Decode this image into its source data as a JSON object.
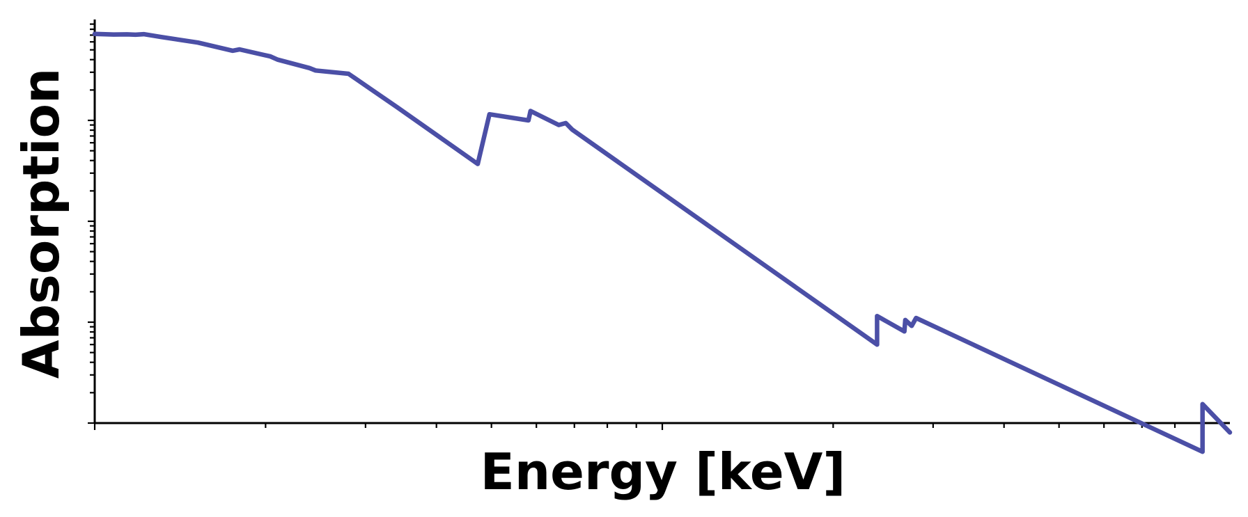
{
  "chart_data": {
    "type": "line",
    "xlabel": "Energy [keV]",
    "ylabel": "Absorption",
    "title": "",
    "x_scale": "log",
    "y_scale": "log",
    "xlim": [
      1,
      100
    ],
    "ylim": [
      0.1,
      1000
    ],
    "tick_labels_shown": false,
    "grid": false,
    "legend": "none",
    "color": "#4b4fa6",
    "series": [
      {
        "x": [
          1.0,
          1.08,
          1.14,
          1.18,
          1.22,
          1.31,
          1.52,
          1.75,
          1.8,
          2.04,
          2.1,
          2.39,
          2.45,
          2.8,
          3.41,
          4.73,
          4.76,
          4.96,
          5.81,
          5.86,
          6.57,
          6.76,
          6.94,
          23.9,
          23.9,
          26.7,
          26.8,
          27.5,
          28.0,
          89.5,
          89.5,
          103
        ],
        "y": [
          720,
          710,
          712,
          706,
          715,
          670,
          590,
          490,
          505,
          430,
          400,
          330,
          312,
          290,
          135,
          37,
          43,
          115,
          100,
          124,
          90,
          94,
          81,
          0.6,
          1.15,
          0.81,
          1.05,
          0.92,
          1.1,
          0.052,
          0.154,
          0.068
        ]
      }
    ]
  }
}
